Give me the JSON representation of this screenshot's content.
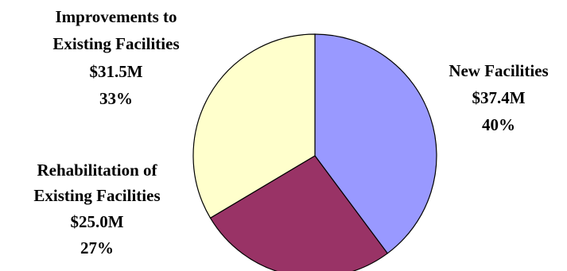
{
  "chart_data": {
    "type": "pie",
    "start_angle_deg": 0,
    "direction": "clockwise",
    "slices": [
      {
        "label_lines": [
          "New Facilities"
        ],
        "value_text": "$37.4M",
        "percent_text": "40%",
        "value": 37.4,
        "percent": 40,
        "color": "#9999ff"
      },
      {
        "label_lines": [
          "Rehabilitation of",
          "Existing Facilities"
        ],
        "value_text": "$25.0M",
        "percent_text": "27%",
        "value": 25.0,
        "percent": 27,
        "color": "#993366"
      },
      {
        "label_lines": [
          "Improvements to",
          "Existing Facilities"
        ],
        "value_text": "$31.5M",
        "percent_text": "33%",
        "value": 31.5,
        "percent": 33,
        "color": "#ffffcc"
      }
    ]
  }
}
